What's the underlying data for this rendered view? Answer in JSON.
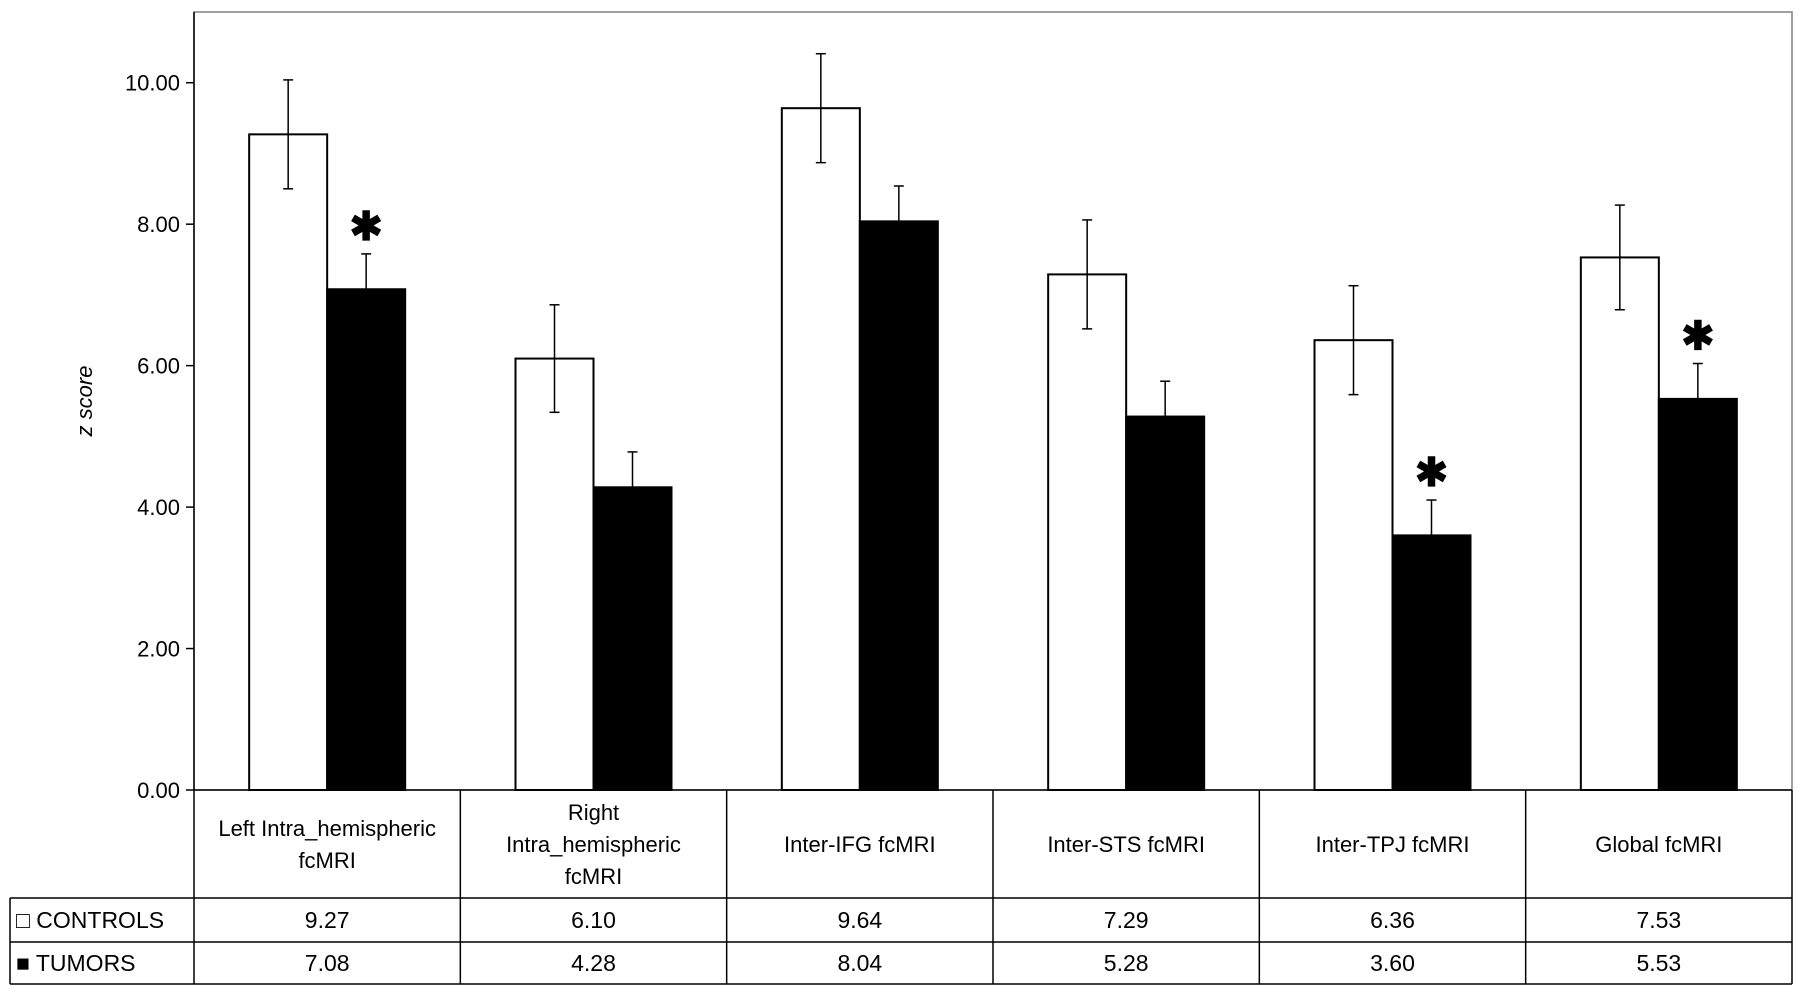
{
  "chart_data": {
    "type": "bar",
    "ylabel": "z score",
    "ylim": [
      0,
      11
    ],
    "yticks": [
      "0.00",
      "2.00",
      "4.00",
      "6.00",
      "8.00",
      "10.00"
    ],
    "categories": [
      [
        "Left Intra_hemispheric",
        "fcMRI"
      ],
      [
        "Right",
        "Intra_hemispheric",
        "fcMRI"
      ],
      [
        "Inter-IFG fcMRI"
      ],
      [
        "Inter-STS fcMRI"
      ],
      [
        "Inter-TPJ fcMRI"
      ],
      [
        "Global fcMRI"
      ]
    ],
    "series": [
      {
        "name": "CONTROLS",
        "marker": "□",
        "color": "#ffffff",
        "values": [
          9.27,
          6.1,
          9.64,
          7.29,
          6.36,
          7.53
        ],
        "labels": [
          "9.27",
          "6.10",
          "9.64",
          "7.29",
          "6.36",
          "7.53"
        ],
        "errors": [
          0.77,
          0.76,
          0.77,
          0.77,
          0.77,
          0.74
        ]
      },
      {
        "name": "TUMORS",
        "marker": "■",
        "color": "#000000",
        "values": [
          7.08,
          4.28,
          8.04,
          5.28,
          3.6,
          5.53
        ],
        "labels": [
          "7.08",
          "4.28",
          "8.04",
          "5.28",
          "3.60",
          "5.53"
        ],
        "errors": [
          0.5,
          0.5,
          0.5,
          0.5,
          0.5,
          0.5
        ]
      }
    ],
    "significance_marker": "✱",
    "significant_categories": [
      0,
      4,
      5
    ],
    "grid": false,
    "legend": "data-table"
  }
}
